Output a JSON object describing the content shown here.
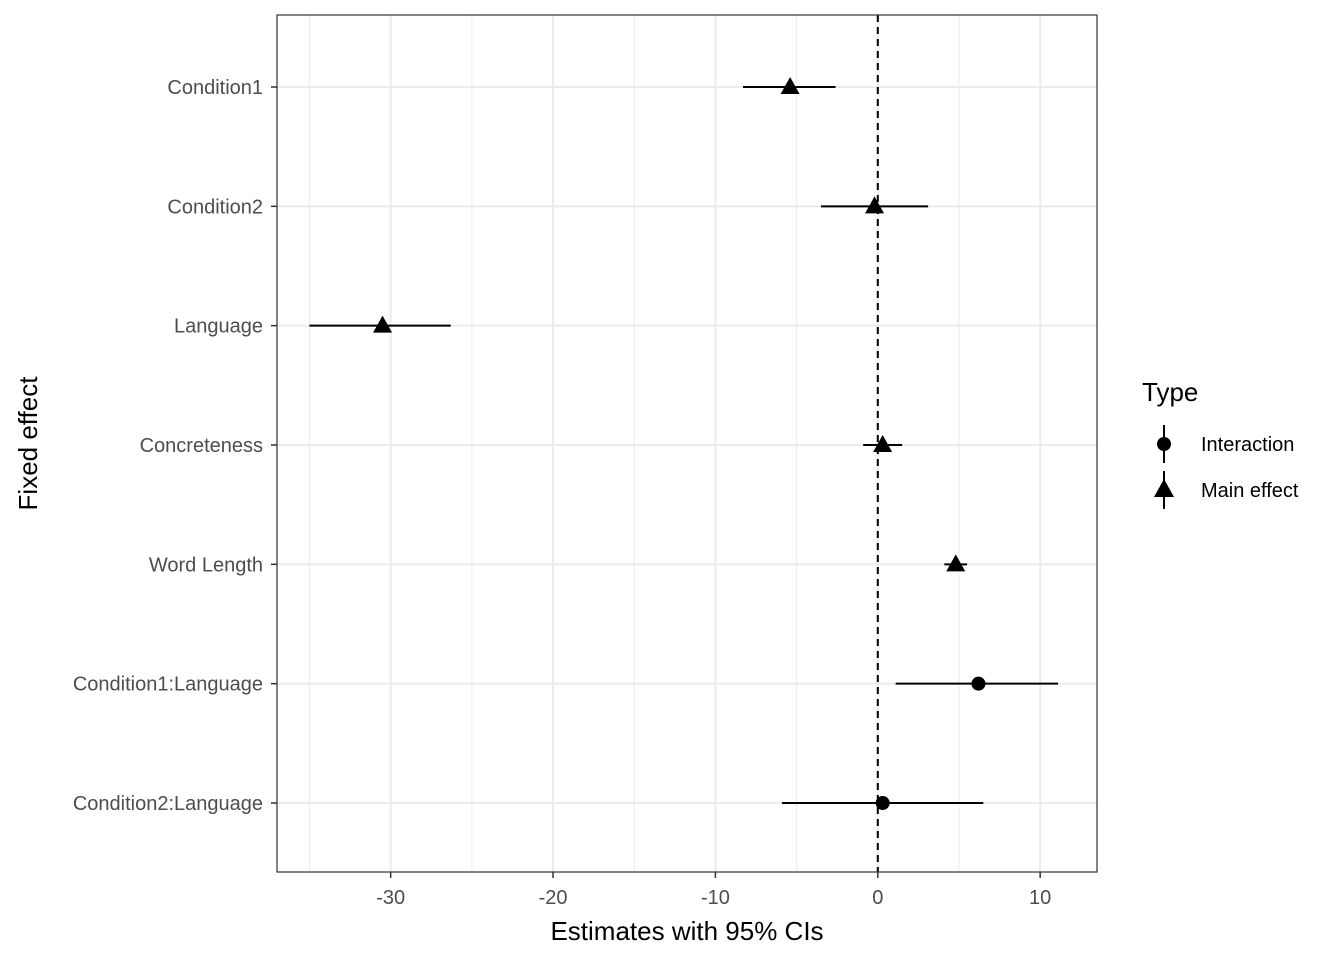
{
  "chart_data": {
    "type": "scatter",
    "subtype": "forest-plot-with-error-bars",
    "xlabel": "Estimates with 95% CIs",
    "ylabel": "Fixed effect",
    "xlim": [
      -37,
      13.5
    ],
    "xticks": [
      -30,
      -20,
      -10,
      0,
      10
    ],
    "xtick_labels": [
      "-30",
      "-20",
      "-10",
      "0",
      "10"
    ],
    "reference_line": {
      "x": 0,
      "style": "dashed"
    },
    "grid": true,
    "legend": {
      "title": "Type",
      "position": "right",
      "entries": [
        {
          "label": "Interaction",
          "shape": "circle"
        },
        {
          "label": "Main effect",
          "shape": "triangle"
        }
      ]
    },
    "categories": [
      "Condition1",
      "Condition2",
      "Language",
      "Concreteness",
      "Word Length",
      "Condition1:Language",
      "Condition2:Language"
    ],
    "points": [
      {
        "label": "Condition1",
        "estimate": -5.4,
        "ci_low": -8.3,
        "ci_high": -2.6,
        "type": "Main effect"
      },
      {
        "label": "Condition2",
        "estimate": -0.2,
        "ci_low": -3.5,
        "ci_high": 3.1,
        "type": "Main effect"
      },
      {
        "label": "Language",
        "estimate": -30.5,
        "ci_low": -35.0,
        "ci_high": -26.3,
        "type": "Main effect"
      },
      {
        "label": "Concreteness",
        "estimate": 0.3,
        "ci_low": -0.9,
        "ci_high": 1.5,
        "type": "Main effect"
      },
      {
        "label": "Word Length",
        "estimate": 4.8,
        "ci_low": 4.1,
        "ci_high": 5.5,
        "type": "Main effect"
      },
      {
        "label": "Condition1:Language",
        "estimate": 6.2,
        "ci_low": 1.1,
        "ci_high": 11.1,
        "type": "Interaction"
      },
      {
        "label": "Condition2:Language",
        "estimate": 0.3,
        "ci_low": -5.9,
        "ci_high": 6.5,
        "type": "Interaction"
      }
    ]
  }
}
